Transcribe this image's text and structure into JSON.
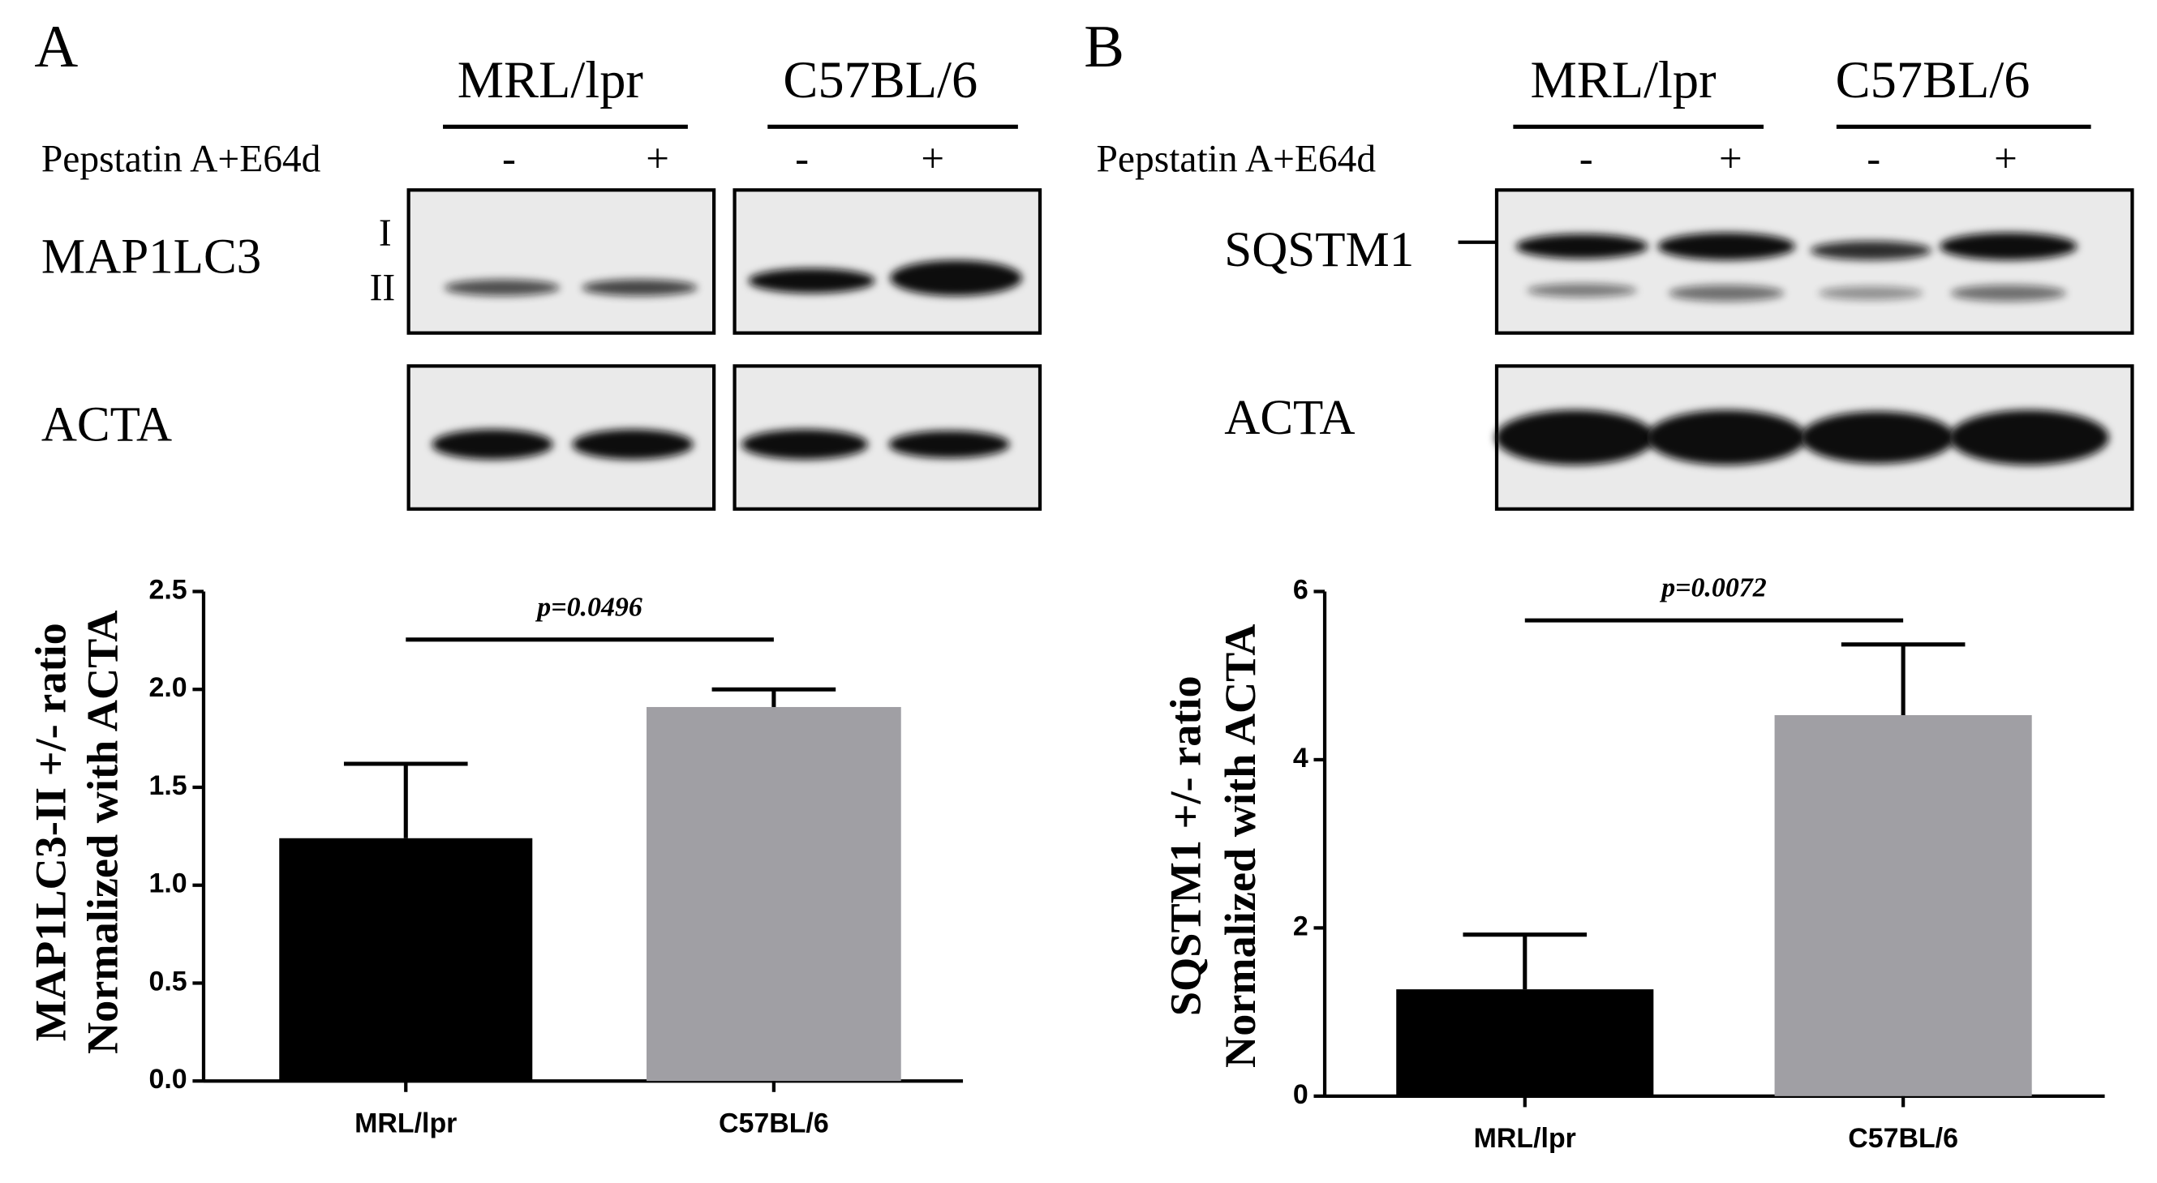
{
  "blots": [
    {
      "panel": "A",
      "groups": [
        "MRL/lpr",
        "C57BL/6"
      ],
      "treatment": "Pepstatin A+E64d",
      "signs": [
        "-",
        "+",
        "-",
        "+"
      ],
      "rows": [
        "MAP1LC3",
        "ACTA"
      ],
      "band_labels": [
        "I",
        "II"
      ]
    },
    {
      "panel": "B",
      "groups": [
        "MRL/lpr",
        "C57BL/6"
      ],
      "treatment": "Pepstatin A+E64d",
      "signs": [
        "-",
        "+",
        "-",
        "+"
      ],
      "rows": [
        "SQSTM1",
        "ACTA"
      ]
    }
  ],
  "chart_data": [
    {
      "type": "bar",
      "ylabel": [
        "MAP1LC3-II +/- ratio",
        "Normalized with ACTA"
      ],
      "categories": [
        "MRL/lpr",
        "C57BL/6"
      ],
      "values": [
        1.24,
        1.91
      ],
      "errors": [
        0.38,
        0.09
      ],
      "colors": [
        "#000000",
        "#a09fa4"
      ],
      "ylim": [
        0,
        2.5
      ],
      "yticks": [
        {
          "value": 0,
          "label": "0.0"
        },
        0.5,
        {
          "value": 1,
          "label": "1.0"
        },
        1.5,
        {
          "value": 2,
          "label": "2.0"
        },
        2.5
      ],
      "annotation": "p=0.0496"
    },
    {
      "type": "bar",
      "ylabel": [
        "SQSTM1 +/- ratio",
        "Normalized with ACTA"
      ],
      "categories": [
        "MRL/lpr",
        "C57BL/6"
      ],
      "values": [
        1.27,
        4.53
      ],
      "errors": [
        0.65,
        0.84
      ],
      "colors": [
        "#000000",
        "#a09fa4"
      ],
      "ylim": [
        0,
        6
      ],
      "yticks": [
        0,
        2,
        4,
        6
      ],
      "annotation": "p=0.0072"
    }
  ]
}
